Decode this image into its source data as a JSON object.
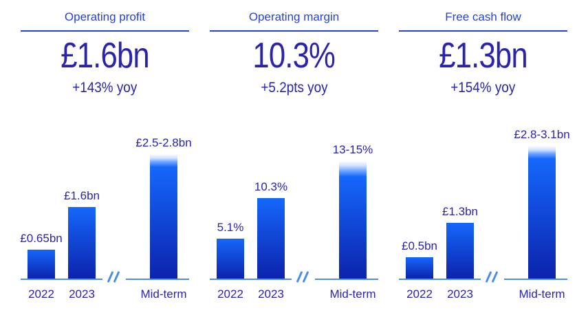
{
  "colors": {
    "title_color": "#2342da",
    "headline_color": "#2a23ae",
    "label_color": "#2a23ae",
    "axis_color": "#4b8de9",
    "bar_top": "#1567fb",
    "bar_bottom": "#0c23ac",
    "fade_top": "#ffffff",
    "background": "#ffffff"
  },
  "chart_data": [
    {
      "type": "bar",
      "title": "Operating profit",
      "headline_value": "£1.6bn",
      "yoy_change": "+143% yoy",
      "unit": "£bn",
      "categories": [
        "2022",
        "2023",
        "Mid-term"
      ],
      "bars": [
        {
          "category": "2022",
          "value": 0.65,
          "label": "£0.65bn"
        },
        {
          "category": "2023",
          "value": 1.6,
          "label": "£1.6bn"
        },
        {
          "category": "Mid-term",
          "value": [
            2.5,
            2.8
          ],
          "label": "£2.5-2.8bn"
        }
      ],
      "ylim": [
        0,
        3.55
      ],
      "grid": false,
      "axis_break_before_last": true
    },
    {
      "type": "bar",
      "title": "Operating margin",
      "headline_value": "10.3%",
      "yoy_change": "+5.2pts yoy",
      "unit": "%",
      "categories": [
        "2022",
        "2023",
        "Mid-term"
      ],
      "bars": [
        {
          "category": "2022",
          "value": 5.1,
          "label": "5.1%"
        },
        {
          "category": "2023",
          "value": 10.3,
          "label": "10.3%"
        },
        {
          "category": "Mid-term",
          "value": [
            13,
            15
          ],
          "label": "13-15%"
        }
      ],
      "ylim": [
        0,
        20.2
      ],
      "grid": false,
      "axis_break_before_last": true
    },
    {
      "type": "bar",
      "title": "Free cash flow",
      "headline_value": "£1.3bn",
      "yoy_change": "+154% yoy",
      "unit": "£bn",
      "categories": [
        "2022",
        "2023",
        "Mid-term"
      ],
      "bars": [
        {
          "category": "2022",
          "value": 0.5,
          "label": "£0.5bn"
        },
        {
          "category": "2023",
          "value": 1.3,
          "label": "£1.3bn"
        },
        {
          "category": "Mid-term",
          "value": [
            2.8,
            3.1
          ],
          "label": "£2.8-3.1bn"
        }
      ],
      "ylim": [
        0,
        3.7
      ],
      "grid": false,
      "axis_break_before_last": true
    }
  ]
}
